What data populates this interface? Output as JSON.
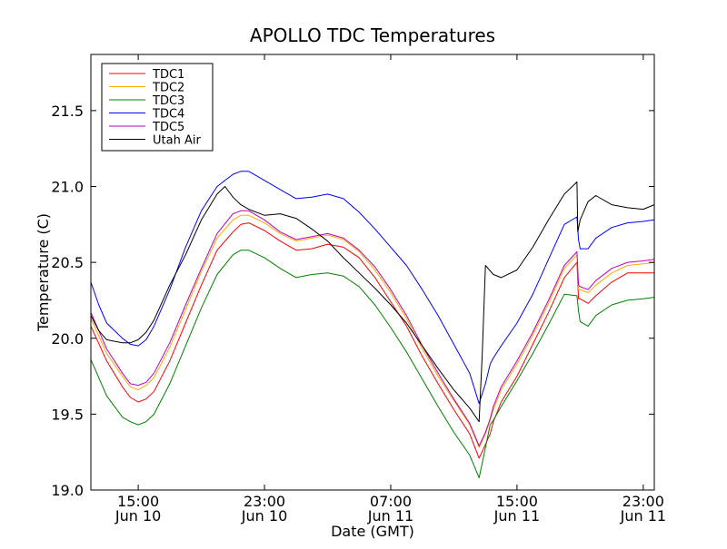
{
  "chart_data": {
    "type": "line",
    "title": "APOLLO TDC Temperatures",
    "xlabel": "Date (GMT)",
    "ylabel": "Temperature (C)",
    "x_unit": "hours since Jun 10 00:00 GMT",
    "xlim": [
      12.0,
      47.7
    ],
    "ylim": [
      19.0,
      21.87
    ],
    "grid": false,
    "legend_position": "top-left",
    "x_ticks": [
      {
        "value": 15,
        "line1": "15:00",
        "line2": "Jun 10"
      },
      {
        "value": 23,
        "line1": "23:00",
        "line2": "Jun 10"
      },
      {
        "value": 31,
        "line1": "07:00",
        "line2": "Jun 11"
      },
      {
        "value": 39,
        "line1": "15:00",
        "line2": "Jun 11"
      },
      {
        "value": 47,
        "line1": "23:00",
        "line2": "Jun 11"
      }
    ],
    "y_ticks": [
      {
        "value": 19.0,
        "label": "19.0"
      },
      {
        "value": 19.5,
        "label": "19.5"
      },
      {
        "value": 20.0,
        "label": "20.0"
      },
      {
        "value": 20.5,
        "label": "20.5"
      },
      {
        "value": 21.0,
        "label": "21.0"
      },
      {
        "value": 21.5,
        "label": "21.5"
      }
    ],
    "series": [
      {
        "name": "TDC1",
        "color": "#ff0000",
        "x": [
          12.0,
          13.0,
          14.0,
          14.5,
          15.0,
          15.5,
          16.0,
          17.0,
          18.0,
          19.0,
          20.0,
          21.0,
          21.5,
          22.0,
          23.0,
          24.0,
          25.0,
          26.0,
          27.0,
          28.0,
          29.0,
          30.0,
          31.0,
          32.0,
          33.0,
          34.0,
          35.0,
          36.0,
          36.6,
          37.0,
          37.3,
          37.5,
          38.0,
          39.0,
          40.0,
          41.0,
          42.0,
          42.8,
          42.9,
          43.0,
          43.5,
          44.0,
          45.0,
          46.0,
          47.0,
          47.7
        ],
        "y": [
          20.08,
          19.85,
          19.68,
          19.61,
          19.58,
          19.6,
          19.65,
          19.85,
          20.1,
          20.35,
          20.58,
          20.7,
          20.75,
          20.76,
          20.71,
          20.64,
          20.58,
          20.59,
          20.62,
          20.6,
          20.53,
          20.4,
          20.24,
          20.08,
          19.88,
          19.7,
          19.53,
          19.37,
          19.21,
          19.3,
          19.37,
          19.45,
          19.58,
          19.75,
          19.96,
          20.17,
          20.4,
          20.5,
          20.26,
          20.26,
          20.23,
          20.28,
          20.37,
          20.43,
          20.43,
          20.43
        ]
      },
      {
        "name": "TDC2",
        "color": "#ffaa00",
        "x": [
          12.0,
          13.0,
          14.0,
          14.5,
          15.0,
          15.5,
          16.0,
          17.0,
          18.0,
          19.0,
          20.0,
          21.0,
          21.5,
          22.0,
          23.0,
          24.0,
          25.0,
          26.0,
          27.0,
          28.0,
          29.0,
          30.0,
          31.0,
          32.0,
          33.0,
          34.0,
          35.0,
          36.0,
          36.6,
          37.0,
          37.3,
          37.5,
          38.0,
          39.0,
          40.0,
          41.0,
          42.0,
          42.8,
          42.9,
          43.0,
          43.5,
          44.0,
          45.0,
          46.0,
          47.0,
          47.7
        ],
        "y": [
          20.13,
          19.9,
          19.75,
          19.68,
          19.66,
          19.69,
          19.74,
          19.94,
          20.19,
          20.44,
          20.66,
          20.78,
          20.81,
          20.81,
          20.76,
          20.69,
          20.64,
          20.66,
          20.68,
          20.65,
          20.57,
          20.45,
          20.3,
          20.13,
          19.93,
          19.75,
          19.59,
          19.43,
          19.28,
          19.37,
          19.46,
          19.53,
          19.66,
          19.83,
          20.02,
          20.23,
          20.46,
          20.55,
          20.32,
          20.32,
          20.3,
          20.35,
          20.43,
          20.48,
          20.49,
          20.5
        ]
      },
      {
        "name": "TDC3",
        "color": "#008000",
        "x": [
          12.0,
          13.0,
          14.0,
          14.5,
          15.0,
          15.5,
          16.0,
          17.0,
          18.0,
          19.0,
          20.0,
          21.0,
          21.5,
          22.0,
          23.0,
          24.0,
          25.0,
          26.0,
          27.0,
          28.0,
          29.0,
          30.0,
          31.0,
          32.0,
          33.0,
          34.0,
          35.0,
          36.0,
          36.6,
          37.0,
          37.3,
          37.5,
          38.0,
          39.0,
          40.0,
          41.0,
          42.0,
          42.8,
          42.9,
          43.0,
          43.5,
          44.0,
          45.0,
          46.0,
          47.0,
          47.7
        ],
        "y": [
          19.86,
          19.62,
          19.48,
          19.45,
          19.43,
          19.45,
          19.5,
          19.7,
          19.95,
          20.2,
          20.42,
          20.55,
          20.58,
          20.58,
          20.53,
          20.46,
          20.4,
          20.42,
          20.43,
          20.41,
          20.34,
          20.22,
          20.07,
          19.91,
          19.73,
          19.55,
          19.38,
          19.23,
          19.08,
          19.28,
          19.43,
          19.46,
          19.55,
          19.72,
          19.9,
          20.09,
          20.29,
          20.28,
          20.18,
          20.11,
          20.08,
          20.15,
          20.22,
          20.25,
          20.26,
          20.27
        ]
      },
      {
        "name": "TDC4",
        "color": "#0000ff",
        "x": [
          12.0,
          12.5,
          13.0,
          14.0,
          14.5,
          15.0,
          15.5,
          16.0,
          17.0,
          18.0,
          19.0,
          20.0,
          21.0,
          21.5,
          22.0,
          22.5,
          23.0,
          24.0,
          25.0,
          26.0,
          27.0,
          28.0,
          29.0,
          30.0,
          31.0,
          32.0,
          33.0,
          34.0,
          35.0,
          36.0,
          36.6,
          37.0,
          37.3,
          37.5,
          38.0,
          39.0,
          40.0,
          41.0,
          42.0,
          42.8,
          42.9,
          43.0,
          43.5,
          44.0,
          45.0,
          46.0,
          47.0,
          47.7
        ],
        "y": [
          20.37,
          20.22,
          20.1,
          20.0,
          19.96,
          19.95,
          19.99,
          20.08,
          20.32,
          20.6,
          20.84,
          21.0,
          21.08,
          21.1,
          21.1,
          21.07,
          21.04,
          20.98,
          20.92,
          20.93,
          20.95,
          20.92,
          20.83,
          20.72,
          20.6,
          20.48,
          20.32,
          20.15,
          19.96,
          19.77,
          19.57,
          19.7,
          19.83,
          19.87,
          19.95,
          20.1,
          20.29,
          20.52,
          20.75,
          20.8,
          20.65,
          20.59,
          20.59,
          20.66,
          20.73,
          20.76,
          20.77,
          20.78
        ]
      },
      {
        "name": "TDC5",
        "color": "#bf00bf",
        "x": [
          12.0,
          13.0,
          14.0,
          14.5,
          15.0,
          15.5,
          16.0,
          17.0,
          18.0,
          19.0,
          20.0,
          21.0,
          21.5,
          22.0,
          23.0,
          24.0,
          25.0,
          26.0,
          27.0,
          28.0,
          29.0,
          30.0,
          31.0,
          32.0,
          33.0,
          34.0,
          35.0,
          36.0,
          36.6,
          37.0,
          37.3,
          37.5,
          38.0,
          39.0,
          40.0,
          41.0,
          42.0,
          42.8,
          42.9,
          43.0,
          43.5,
          44.0,
          45.0,
          46.0,
          47.0,
          47.7
        ],
        "y": [
          20.17,
          19.93,
          19.77,
          19.7,
          19.69,
          19.71,
          19.77,
          19.97,
          20.22,
          20.46,
          20.69,
          20.82,
          20.84,
          20.84,
          20.78,
          20.7,
          20.65,
          20.67,
          20.69,
          20.66,
          20.58,
          20.47,
          20.32,
          20.15,
          19.95,
          19.77,
          19.6,
          19.44,
          19.29,
          19.38,
          19.47,
          19.55,
          19.68,
          19.85,
          20.04,
          20.25,
          20.48,
          20.57,
          20.35,
          20.34,
          20.32,
          20.38,
          20.46,
          20.5,
          20.51,
          20.52
        ]
      },
      {
        "name": "Utah Air",
        "color": "#000000",
        "x": [
          12.0,
          12.5,
          13.0,
          14.0,
          14.5,
          15.0,
          15.5,
          16.0,
          17.0,
          18.0,
          19.0,
          20.0,
          20.5,
          21.0,
          21.5,
          22.0,
          23.0,
          24.0,
          25.0,
          26.0,
          27.0,
          28.0,
          29.0,
          30.0,
          31.0,
          32.0,
          33.0,
          34.0,
          35.0,
          36.0,
          36.6,
          36.8,
          37.0,
          37.5,
          38.0,
          39.0,
          40.0,
          41.0,
          42.0,
          42.8,
          42.85,
          43.0,
          43.5,
          44.0,
          45.0,
          46.0,
          47.0,
          47.7
        ],
        "y": [
          20.15,
          20.05,
          19.99,
          19.97,
          19.97,
          19.99,
          20.04,
          20.12,
          20.35,
          20.55,
          20.78,
          20.95,
          21.0,
          20.93,
          20.88,
          20.85,
          20.81,
          20.82,
          20.79,
          20.72,
          20.64,
          20.53,
          20.43,
          20.33,
          20.22,
          20.1,
          19.95,
          19.8,
          19.66,
          19.54,
          19.45,
          19.9,
          20.48,
          20.42,
          20.4,
          20.45,
          20.6,
          20.78,
          20.95,
          21.03,
          20.7,
          20.78,
          20.9,
          20.94,
          20.88,
          20.86,
          20.85,
          20.88
        ]
      }
    ]
  }
}
